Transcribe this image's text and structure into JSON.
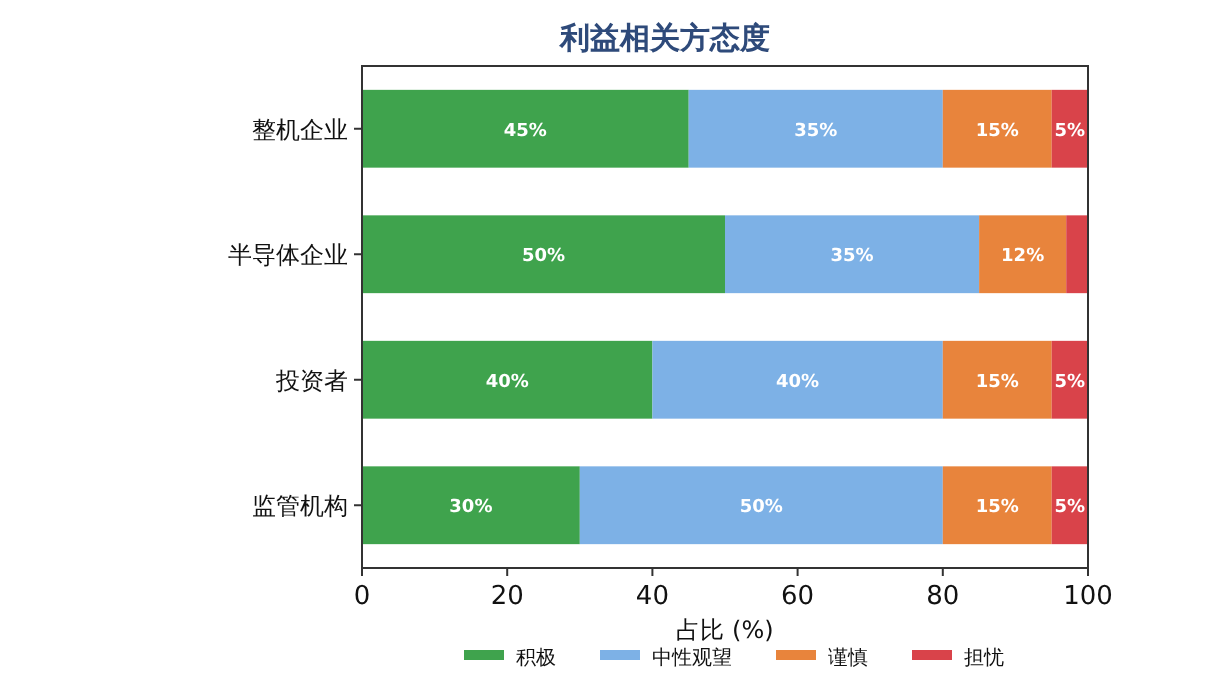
{
  "chart_data": {
    "type": "bar",
    "orientation": "horizontal",
    "stacked": true,
    "title": "利益相关方态度",
    "xlabel": "占比 (%)",
    "categories": [
      "整机企业",
      "半导体企业",
      "投资者",
      "监管机构"
    ],
    "xlim": [
      0,
      100
    ],
    "xticks": [
      0,
      20,
      40,
      60,
      80,
      100
    ],
    "legend": "bottom",
    "grid": false,
    "series": [
      {
        "name": "积极",
        "color": "#3fa34d",
        "values": [
          45,
          50,
          40,
          30
        ],
        "value_labels": [
          "45%",
          "50%",
          "40%",
          "30%"
        ]
      },
      {
        "name": "中性观望",
        "color": "#7db1e6",
        "values": [
          35,
          35,
          40,
          50
        ],
        "value_labels": [
          "35%",
          "35%",
          "40%",
          "50%"
        ]
      },
      {
        "name": "谨慎",
        "color": "#e8843c",
        "values": [
          15,
          12,
          15,
          15
        ],
        "value_labels": [
          "15%",
          "12%",
          "15%",
          "15%"
        ]
      },
      {
        "name": "担忧",
        "color": "#d9434a",
        "values": [
          5,
          3,
          5,
          5
        ],
        "value_labels": [
          "5%",
          null,
          "5%",
          "5%"
        ]
      }
    ]
  }
}
